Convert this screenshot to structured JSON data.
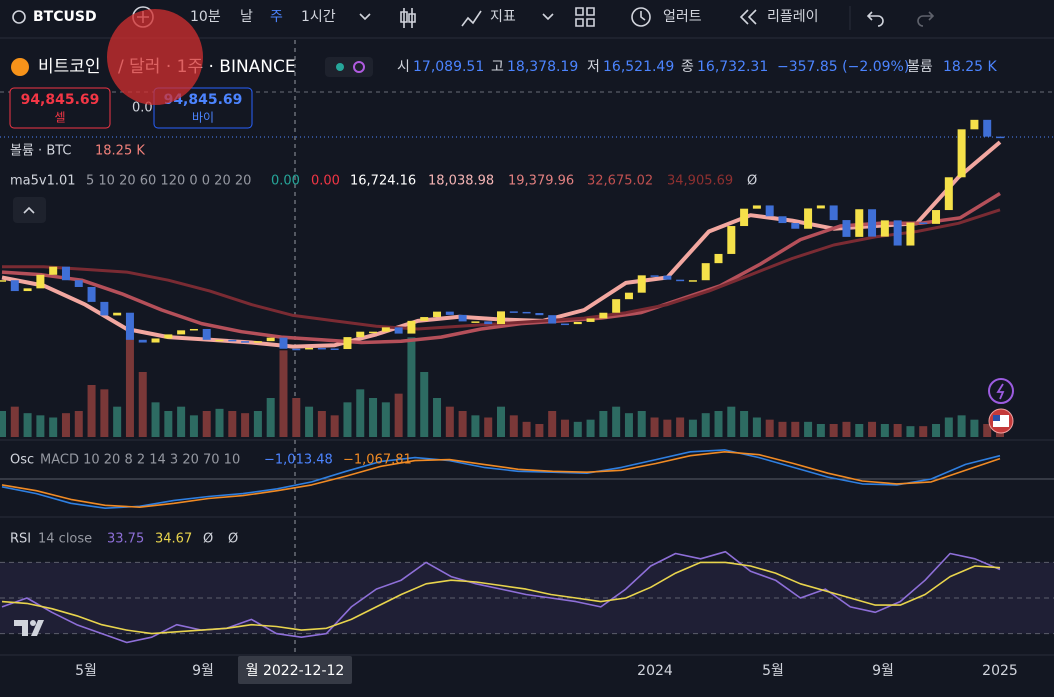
{
  "toolbar": {
    "symbol": "BTCUSD",
    "intervals": [
      "10분",
      "날",
      "주",
      "1시간"
    ],
    "indicators": "지표",
    "alert": "얼러트",
    "replay": "리플레이"
  },
  "legend": {
    "name": "비트코인",
    "detail": "/ 달러 · 1주 · BINANCE",
    "ohlc": [
      [
        "시",
        "17,089.51"
      ],
      [
        "고",
        "18,378.19"
      ],
      [
        "저",
        "16,521.49"
      ],
      [
        "종",
        "16,732.31"
      ]
    ],
    "change": "−357.85 (−2.09%)",
    "volume_label": "볼륨",
    "volume": "18.25 K"
  },
  "trade": {
    "sell_price": "94,845.69",
    "sell": "셀",
    "spread": "0.00",
    "buy_price": "94,845.69",
    "buy": "바이"
  },
  "volume_legend": {
    "title": "볼륨 · BTC",
    "value": "18.25 K"
  },
  "ma_legend": {
    "name": "ma5v1.01",
    "params": "5 10 20 60 120 0 0 20 20",
    "values": [
      "0.00",
      "0.00",
      "16,724.16",
      "18,038.98",
      "19,379.96",
      "32,675.02",
      "34,905.69"
    ],
    "mark": "Ø"
  },
  "macd_legend": {
    "name": "Osc",
    "params": "MACD 10 20 8 2 14 3 20 70 10",
    "values": [
      "−1,013.48",
      "−1,067.81"
    ]
  },
  "rsi_legend": {
    "name": "RSI",
    "params": "14 close",
    "values": [
      "33.75",
      "34.67"
    ],
    "marks": [
      "Ø",
      "Ø"
    ]
  },
  "x_axis": {
    "labels": [
      "5월",
      "9월",
      "2024",
      "5월",
      "9월",
      "2025"
    ],
    "crosshair": "월 2022-12-12"
  },
  "chart_data": [
    {
      "type": "candlestick",
      "up_color": "#f5e14a",
      "down_color": "#3f6fd6",
      "ylim": [
        0,
        110000
      ],
      "values": [
        42000,
        38000,
        39000,
        44000,
        47000,
        42000,
        39500,
        34000,
        29000,
        30000,
        20000,
        19000,
        20500,
        22000,
        23500,
        24000,
        20000,
        20000,
        19500,
        19200,
        19500,
        20800,
        16700,
        16500,
        17000,
        16800,
        16600,
        21000,
        23000,
        23000,
        24600,
        22300,
        27000,
        28400,
        30400,
        29200,
        26800,
        26800,
        25800,
        30500,
        30300,
        29900,
        29100,
        26000,
        25800,
        26600,
        27900,
        30000,
        35000,
        37400,
        43800,
        43700,
        42200,
        41700,
        42000,
        48300,
        51700,
        62000,
        68400,
        69600,
        65600,
        63100,
        61000,
        68500,
        69600,
        64200,
        58000,
        68200,
        58100,
        64100,
        54800,
        63300,
        62800,
        67900,
        80000,
        97700,
        101200,
        95000,
        94845.69
      ],
      "volume": [
        60,
        70,
        55,
        50,
        45,
        55,
        60,
        120,
        110,
        70,
        230,
        150,
        80,
        60,
        70,
        50,
        60,
        65,
        60,
        55,
        60,
        90,
        200,
        90,
        70,
        60,
        50,
        80,
        110,
        90,
        80,
        100,
        230,
        150,
        90,
        70,
        60,
        50,
        45,
        70,
        50,
        35,
        30,
        60,
        40,
        35,
        40,
        60,
        70,
        55,
        60,
        45,
        40,
        45,
        40,
        55,
        60,
        70,
        60,
        45,
        40,
        35,
        35,
        35,
        30,
        30,
        35,
        30,
        35,
        30,
        30,
        25,
        25,
        30,
        45,
        50,
        40,
        30,
        18.25
      ],
      "volume_colors": [
        "#2d6b62",
        "#7a3838"
      ],
      "y2lim": [
        0,
        300
      ],
      "series": [
        {
          "color": "#f2a7a0",
          "values": [
            43000,
            40000,
            33000,
            24000,
            21000,
            20000,
            19000,
            17500,
            18000,
            22000,
            27000,
            28500,
            27500,
            27000,
            31000,
            41000,
            43000,
            60000,
            66000,
            64000,
            61000,
            62000,
            63000,
            80000,
            93000
          ]
        },
        {
          "color": "#b5505a",
          "values": [
            45000,
            44000,
            42000,
            37000,
            31000,
            26000,
            23000,
            21000,
            20000,
            19000,
            19500,
            21000,
            24000,
            26000,
            27000,
            28000,
            30000,
            35000,
            40000,
            48000,
            57000,
            62000,
            63000,
            63000,
            65000,
            74000
          ]
        },
        {
          "color": "#7a2b33",
          "values": [
            47000,
            47000,
            46000,
            45000,
            42000,
            38000,
            33000,
            29000,
            27000,
            25000,
            24000,
            25000,
            26000,
            27000,
            28000,
            30000,
            33000,
            38000,
            44000,
            50000,
            55000,
            58000,
            60000,
            63000,
            68000
          ]
        }
      ]
    },
    {
      "type": "line",
      "ylim": [
        -3700,
        3500
      ],
      "hlines": [
        0
      ],
      "series": [
        {
          "color": "#2f7fe0",
          "values": [
            -800,
            -1500,
            -2500,
            -3000,
            -2800,
            -2200,
            -1800,
            -1500,
            -1000,
            -300,
            800,
            1800,
            2200,
            1900,
            1200,
            800,
            700,
            600,
            1200,
            2000,
            2800,
            3000,
            2200,
            1200,
            200,
            -500,
            -600,
            0,
            1500,
            2400
          ]
        },
        {
          "color": "#f08a24",
          "values": [
            -600,
            -1200,
            -2100,
            -2700,
            -2900,
            -2500,
            -2000,
            -1700,
            -1200,
            -600,
            300,
            1300,
            1900,
            2000,
            1500,
            1000,
            800,
            700,
            900,
            1600,
            2400,
            2800,
            2500,
            1600,
            600,
            -200,
            -500,
            -300,
            900,
            2100
          ]
        }
      ]
    },
    {
      "type": "line",
      "ylim": [
        18,
        91
      ],
      "hlines": [
        70,
        50,
        30
      ],
      "band_color": "#7e57c2",
      "series": [
        {
          "color": "#8e6fd8",
          "values": [
            45,
            50,
            42,
            35,
            30,
            25,
            28,
            35,
            32,
            33,
            38,
            30,
            28,
            30,
            45,
            55,
            60,
            70,
            62,
            58,
            55,
            52,
            50,
            48,
            45,
            55,
            68,
            75,
            72,
            76,
            65,
            60,
            50,
            55,
            45,
            42,
            48,
            60,
            75,
            72,
            66
          ]
        },
        {
          "color": "#e8d44d",
          "values": [
            48,
            47,
            44,
            40,
            35,
            32,
            30,
            31,
            32,
            33,
            35,
            34,
            32,
            33,
            38,
            45,
            52,
            58,
            60,
            59,
            57,
            55,
            52,
            50,
            48,
            50,
            56,
            64,
            70,
            70,
            68,
            64,
            58,
            54,
            50,
            46,
            46,
            52,
            62,
            68,
            67
          ]
        }
      ]
    }
  ]
}
